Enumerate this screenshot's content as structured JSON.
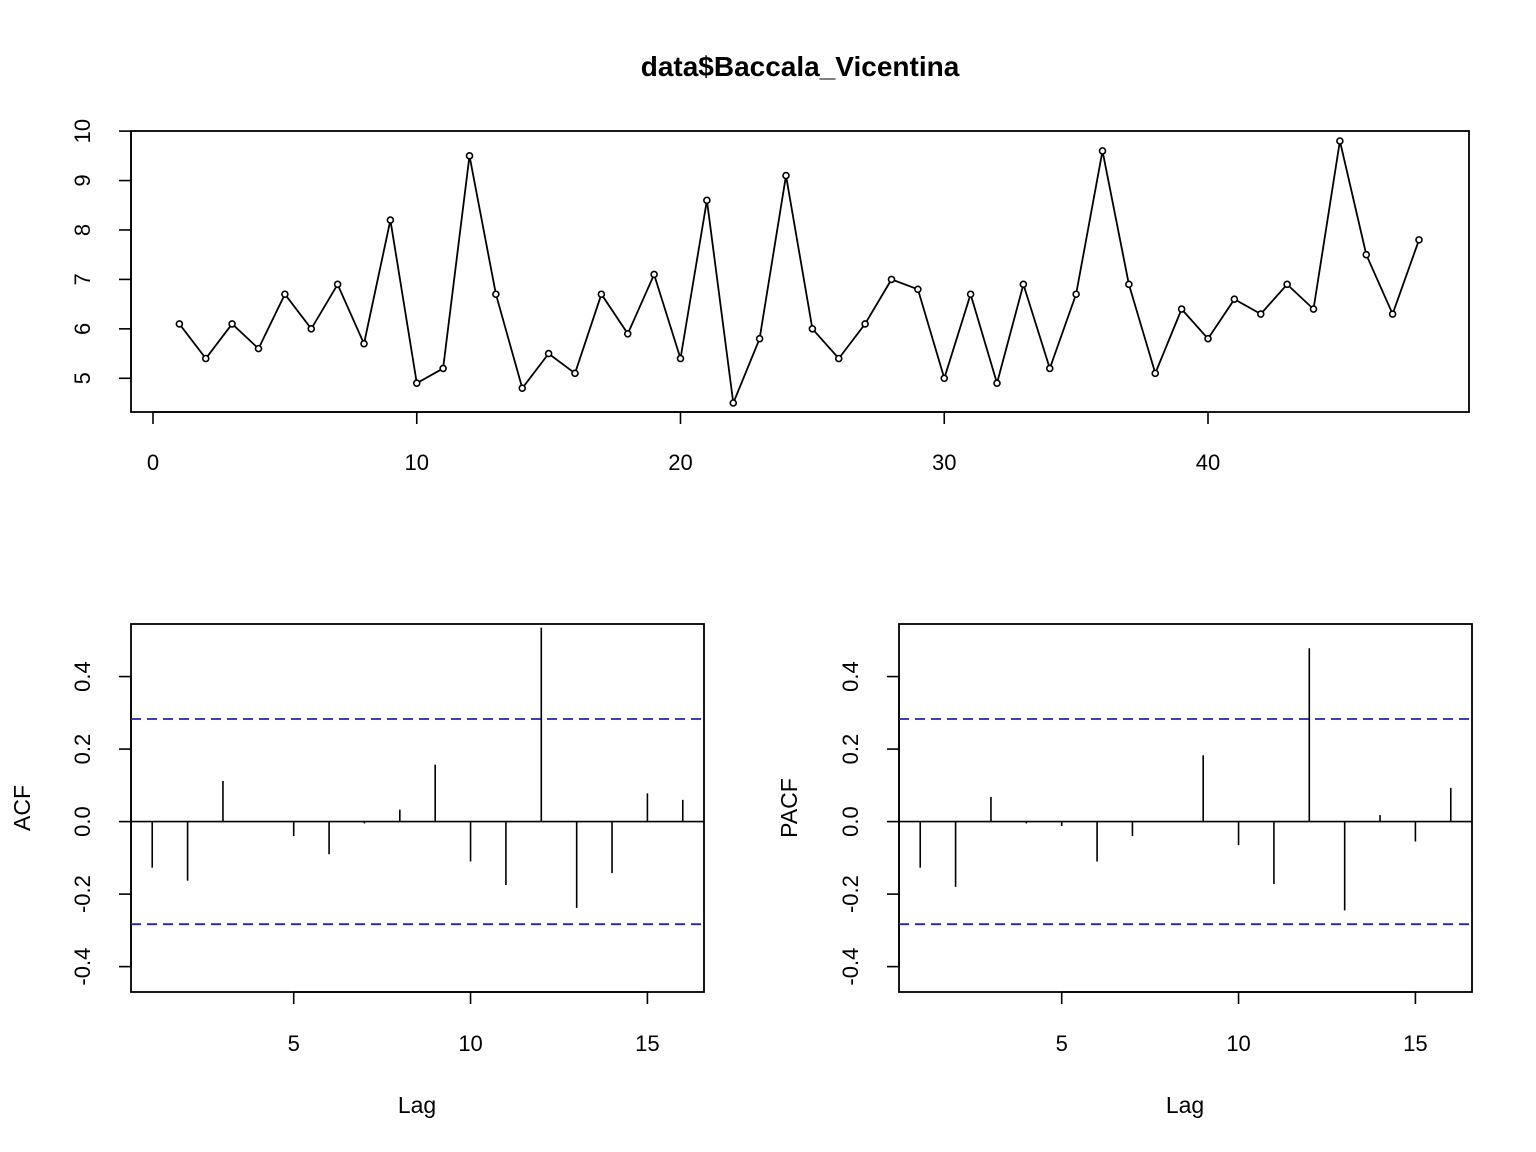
{
  "colors": {
    "ink": "#000000",
    "ci": "#1f1fd6"
  },
  "chart_data": [
    {
      "type": "line",
      "title": "data$Baccala_Vicentina",
      "xlabel": "",
      "ylabel": "",
      "x": [
        1,
        2,
        3,
        4,
        5,
        6,
        7,
        8,
        9,
        10,
        11,
        12,
        13,
        14,
        15,
        16,
        17,
        18,
        19,
        20,
        21,
        22,
        23,
        24,
        25,
        26,
        27,
        28,
        29,
        30,
        31,
        32,
        33,
        34,
        35,
        36,
        37,
        38,
        39,
        40,
        41,
        42,
        43,
        44,
        45,
        46,
        47,
        48
      ],
      "values": [
        6.1,
        5.4,
        6.1,
        5.6,
        6.7,
        6.0,
        6.9,
        5.7,
        8.2,
        4.9,
        5.2,
        9.5,
        6.7,
        4.8,
        5.5,
        5.1,
        6.7,
        5.9,
        7.1,
        5.4,
        8.6,
        4.5,
        5.8,
        9.1,
        6.0,
        5.4,
        6.1,
        7.0,
        6.8,
        5.0,
        6.7,
        4.9,
        6.9,
        5.2,
        6.7,
        9.6,
        6.9,
        5.1,
        6.4,
        5.8,
        6.6,
        6.3,
        6.9,
        6.4,
        9.8,
        7.5,
        6.3,
        7.8
      ],
      "xticks": [
        "0",
        "10",
        "20",
        "30",
        "40"
      ],
      "yticks": [
        "5",
        "6",
        "7",
        "8",
        "9",
        "10"
      ],
      "xlim": [
        0,
        48
      ],
      "ylim": [
        4.5,
        9.8
      ],
      "markers": "open-circle",
      "grid": false
    },
    {
      "type": "bar",
      "title": "",
      "xlabel": "Lag",
      "ylabel": "ACF",
      "lags": [
        1,
        2,
        3,
        4,
        5,
        6,
        7,
        8,
        9,
        10,
        11,
        12,
        13,
        14,
        15,
        16
      ],
      "values": [
        -0.127,
        -0.163,
        0.112,
        0.0,
        -0.04,
        -0.09,
        -0.005,
        0.033,
        0.157,
        -0.11,
        -0.175,
        0.535,
        -0.238,
        -0.142,
        0.078,
        0.06
      ],
      "ci": 0.283,
      "xticks": [
        "5",
        "10",
        "15"
      ],
      "yticks": [
        "-0.4",
        "-0.2",
        "0.0",
        "0.2",
        "0.4"
      ],
      "xlim": [
        0.4,
        16.6
      ],
      "ylim": [
        -0.47,
        0.545
      ],
      "grid": false
    },
    {
      "type": "bar",
      "title": "",
      "xlabel": "Lag",
      "ylabel": "PACF",
      "lags": [
        1,
        2,
        3,
        4,
        5,
        6,
        7,
        8,
        9,
        10,
        11,
        12,
        13,
        14,
        15,
        16
      ],
      "values": [
        -0.127,
        -0.18,
        0.068,
        -0.005,
        -0.012,
        -0.11,
        -0.04,
        0.0,
        0.183,
        -0.065,
        -0.172,
        0.478,
        -0.245,
        0.018,
        -0.055,
        0.093
      ],
      "ci": 0.283,
      "xticks": [
        "5",
        "10",
        "15"
      ],
      "yticks": [
        "-0.4",
        "-0.2",
        "0.0",
        "0.2",
        "0.4"
      ],
      "xlim": [
        0.4,
        16.6
      ],
      "ylim": [
        -0.47,
        0.545
      ],
      "grid": false
    }
  ]
}
